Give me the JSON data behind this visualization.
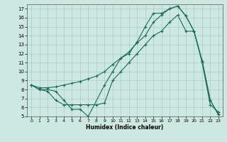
{
  "xlabel": "Humidex (Indice chaleur)",
  "bg_color": "#cce8e0",
  "grid_color": "#aacccc",
  "line_color": "#1a6b5a",
  "xlim": [
    -0.5,
    23.5
  ],
  "ylim": [
    5,
    17.5
  ],
  "xticks": [
    0,
    1,
    2,
    3,
    4,
    5,
    6,
    7,
    8,
    9,
    10,
    11,
    12,
    13,
    14,
    15,
    16,
    17,
    18,
    19,
    20,
    21,
    22,
    23
  ],
  "yticks": [
    5,
    6,
    7,
    8,
    9,
    10,
    11,
    12,
    13,
    14,
    15,
    16,
    17
  ],
  "line1_x": [
    0,
    1,
    2,
    3,
    4,
    5,
    6,
    7,
    9,
    10,
    11,
    12,
    13,
    14,
    15,
    16,
    17,
    18,
    19,
    20,
    21,
    22,
    23
  ],
  "line1_y": [
    8.5,
    8.0,
    8.0,
    7.8,
    6.8,
    5.8,
    5.8,
    5.0,
    8.5,
    10.0,
    11.5,
    12.0,
    13.3,
    15.0,
    16.5,
    16.5,
    17.0,
    17.3,
    16.2,
    14.5,
    11.2,
    6.8,
    5.2
  ],
  "line2_x": [
    0,
    1,
    2,
    3,
    4,
    5,
    6,
    7,
    8,
    9,
    10,
    11,
    12,
    13,
    14,
    15,
    16,
    17,
    18,
    19,
    20,
    21,
    22,
    23
  ],
  "line2_y": [
    8.5,
    8.0,
    7.8,
    6.8,
    6.3,
    6.3,
    6.3,
    6.3,
    6.3,
    6.5,
    9.0,
    10.0,
    11.0,
    12.0,
    13.0,
    14.0,
    14.5,
    15.5,
    16.3,
    14.5,
    14.5,
    11.0,
    6.3,
    5.5
  ],
  "line3_x": [
    0,
    1,
    2,
    3,
    4,
    5,
    6,
    7,
    8,
    9,
    10,
    11,
    12,
    13,
    14,
    15,
    16,
    17,
    18,
    19,
    20,
    21,
    22,
    23
  ],
  "line3_y": [
    8.5,
    8.2,
    8.2,
    8.3,
    8.5,
    8.7,
    8.9,
    9.2,
    9.5,
    10.0,
    10.8,
    11.5,
    12.2,
    13.2,
    14.0,
    15.5,
    16.3,
    17.0,
    17.3,
    16.2,
    14.5,
    11.2,
    6.8,
    5.2
  ]
}
